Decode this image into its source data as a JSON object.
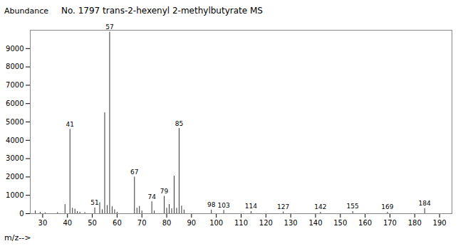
{
  "chart_data": {
    "type": "stem",
    "title": "No. 1797 trans-2-hexenyl 2-methylbutyrate MS",
    "xlabel": "m/z-->",
    "ylabel": "Abundance",
    "color": "#333333",
    "x": [
      27,
      29,
      31,
      36,
      39,
      41,
      42,
      43,
      44,
      45,
      47,
      51,
      53,
      54,
      55,
      56,
      57,
      58,
      59,
      60,
      67,
      68,
      69,
      70,
      74,
      75,
      79,
      80,
      81,
      82,
      83,
      84,
      85,
      86,
      87,
      98,
      103,
      114,
      127,
      142,
      155,
      169,
      184
    ],
    "values": [
      150,
      80,
      50,
      60,
      500,
      4600,
      300,
      250,
      120,
      80,
      60,
      320,
      600,
      220,
      5500,
      450,
      9900,
      380,
      220,
      80,
      2000,
      300,
      400,
      150,
      650,
      150,
      950,
      300,
      500,
      270,
      2050,
      300,
      4650,
      420,
      200,
      200,
      180,
      120,
      100,
      80,
      120,
      80,
      280
    ],
    "annotations": [
      {
        "x": 41,
        "text": "41"
      },
      {
        "x": 51,
        "text": "51"
      },
      {
        "x": 57,
        "text": "57"
      },
      {
        "x": 67,
        "text": "67"
      },
      {
        "x": 74,
        "text": "74"
      },
      {
        "x": 79,
        "text": "79"
      },
      {
        "x": 85,
        "text": "85"
      },
      {
        "x": 98,
        "text": "98"
      },
      {
        "x": 103,
        "text": "103"
      },
      {
        "x": 114,
        "text": "114"
      },
      {
        "x": 127,
        "text": "127"
      },
      {
        "x": 142,
        "text": "142"
      },
      {
        "x": 155,
        "text": "155"
      },
      {
        "x": 169,
        "text": "169"
      },
      {
        "x": 184,
        "text": "184"
      }
    ],
    "xlim": [
      25,
      195
    ],
    "ylim": [
      0,
      10000
    ],
    "xticks": [
      30,
      40,
      50,
      60,
      70,
      80,
      90,
      100,
      110,
      120,
      130,
      140,
      150,
      160,
      170,
      180,
      190
    ],
    "yticks": [
      0,
      1000,
      2000,
      3000,
      4000,
      5000,
      6000,
      7000,
      8000,
      9000
    ]
  }
}
